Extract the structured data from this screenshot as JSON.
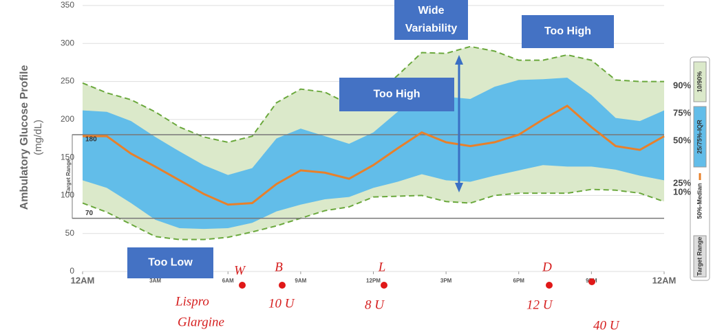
{
  "chart_data": {
    "type": "percentile-band",
    "ylabel": "Ambulatory Glucose Profile",
    "yunit": "(mg/dL)",
    "x": [
      0,
      1,
      2,
      3,
      4,
      5,
      6,
      7,
      8,
      9,
      10,
      11,
      12,
      13,
      14,
      15,
      16,
      17,
      18,
      19,
      20,
      21,
      22,
      23,
      24
    ],
    "xlim": [
      0,
      24
    ],
    "xticks": [
      {
        "value": 0,
        "label": "12AM"
      },
      {
        "value": 3,
        "label": "3AM"
      },
      {
        "value": 6,
        "label": "6AM"
      },
      {
        "value": 9,
        "label": "9AM"
      },
      {
        "value": 12,
        "label": "12PM"
      },
      {
        "value": 15,
        "label": "3PM"
      },
      {
        "value": 18,
        "label": "6PM"
      },
      {
        "value": 21,
        "label": "9PM"
      },
      {
        "value": 24,
        "label": "12AM"
      }
    ],
    "ylim": [
      0,
      350
    ],
    "yticks": [
      0,
      50,
      100,
      150,
      200,
      250,
      300,
      350
    ],
    "grid": true,
    "bands": [
      {
        "name": "10/90%",
        "color": "#dbe9ca",
        "line_color": "#6aa83c",
        "upper": [
          248,
          235,
          226,
          210,
          190,
          177,
          170,
          178,
          222,
          240,
          236,
          220,
          230,
          258,
          288,
          287,
          296,
          290,
          278,
          278,
          285,
          278,
          252,
          250,
          250
        ],
        "lower": [
          90,
          78,
          62,
          46,
          42,
          42,
          45,
          52,
          60,
          70,
          80,
          85,
          98,
          99,
          100,
          92,
          90,
          100,
          103,
          103,
          103,
          108,
          107,
          103,
          92
        ]
      },
      {
        "name": "25/75%-IQR",
        "color": "#62bde9",
        "upper": [
          212,
          210,
          198,
          177,
          158,
          140,
          127,
          136,
          175,
          188,
          178,
          168,
          183,
          210,
          235,
          230,
          227,
          243,
          252,
          253,
          255,
          232,
          202,
          198,
          212
        ],
        "lower": [
          120,
          110,
          90,
          68,
          57,
          56,
          57,
          64,
          79,
          88,
          95,
          98,
          110,
          118,
          128,
          120,
          118,
          126,
          133,
          140,
          138,
          138,
          134,
          126,
          120
        ]
      }
    ],
    "series": [
      {
        "name": "50%-Median",
        "color": "#e8802a",
        "values": [
          178,
          178,
          155,
          138,
          120,
          102,
          88,
          90,
          115,
          133,
          130,
          122,
          140,
          162,
          183,
          170,
          165,
          170,
          180,
          200,
          218,
          190,
          165,
          160,
          178
        ]
      }
    ],
    "target_range": {
      "name": "Target Range",
      "axis_label": "Target Range",
      "low": 70,
      "high": 180,
      "color": "#777"
    },
    "percentile_labels": [
      "90%",
      "75%",
      "50%",
      "25%",
      "10%"
    ],
    "annotations": [
      {
        "lines": [
          "Wide",
          "Variability"
        ]
      },
      {
        "lines": [
          "Too High"
        ]
      },
      {
        "lines": [
          "Too High"
        ]
      },
      {
        "lines": [
          "Too Low"
        ]
      }
    ],
    "meals": [
      "W",
      "B",
      "L",
      "D"
    ],
    "doses": [
      "Lispro",
      "Glargine",
      "10 U",
      "8 U",
      "12 U",
      "40 U"
    ]
  }
}
